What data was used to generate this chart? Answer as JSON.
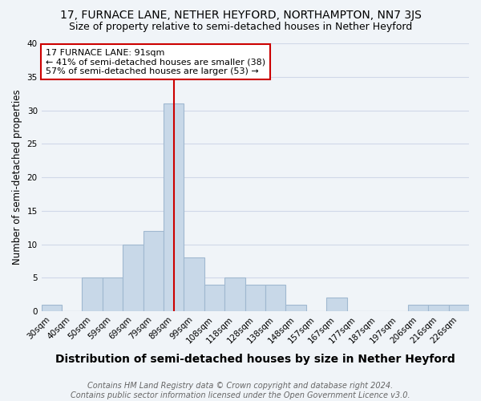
{
  "title": "17, FURNACE LANE, NETHER HEYFORD, NORTHAMPTON, NN7 3JS",
  "subtitle": "Size of property relative to semi-detached houses in Nether Heyford",
  "xlabel": "Distribution of semi-detached houses by size in Nether Heyford",
  "ylabel": "Number of semi-detached properties",
  "footer": "Contains HM Land Registry data © Crown copyright and database right 2024.\nContains public sector information licensed under the Open Government Licence v3.0.",
  "bin_labels": [
    "30sqm",
    "40sqm",
    "50sqm",
    "59sqm",
    "69sqm",
    "79sqm",
    "89sqm",
    "99sqm",
    "108sqm",
    "118sqm",
    "128sqm",
    "138sqm",
    "148sqm",
    "157sqm",
    "167sqm",
    "177sqm",
    "187sqm",
    "197sqm",
    "206sqm",
    "216sqm",
    "226sqm"
  ],
  "bin_values": [
    1,
    0,
    5,
    5,
    10,
    12,
    31,
    8,
    4,
    5,
    4,
    4,
    1,
    0,
    2,
    0,
    0,
    0,
    1,
    1,
    1
  ],
  "bar_color": "#c8d8e8",
  "bar_edge_color": "#a0b8d0",
  "vline_x_index": 6,
  "vline_color": "#cc0000",
  "annotation_line1": "17 FURNACE LANE: 91sqm",
  "annotation_line2": "← 41% of semi-detached houses are smaller (38)",
  "annotation_line3": "57% of semi-detached houses are larger (53) →",
  "annotation_box_color": "#ffffff",
  "annotation_box_edge_color": "#cc0000",
  "ylim": [
    0,
    40
  ],
  "yticks": [
    0,
    5,
    10,
    15,
    20,
    25,
    30,
    35,
    40
  ],
  "grid_color": "#d0d8e8",
  "background_color": "#f0f4f8",
  "title_fontsize": 10,
  "subtitle_fontsize": 9,
  "xlabel_fontsize": 10,
  "ylabel_fontsize": 8.5,
  "tick_fontsize": 7.5,
  "annotation_fontsize": 8,
  "footer_fontsize": 7
}
